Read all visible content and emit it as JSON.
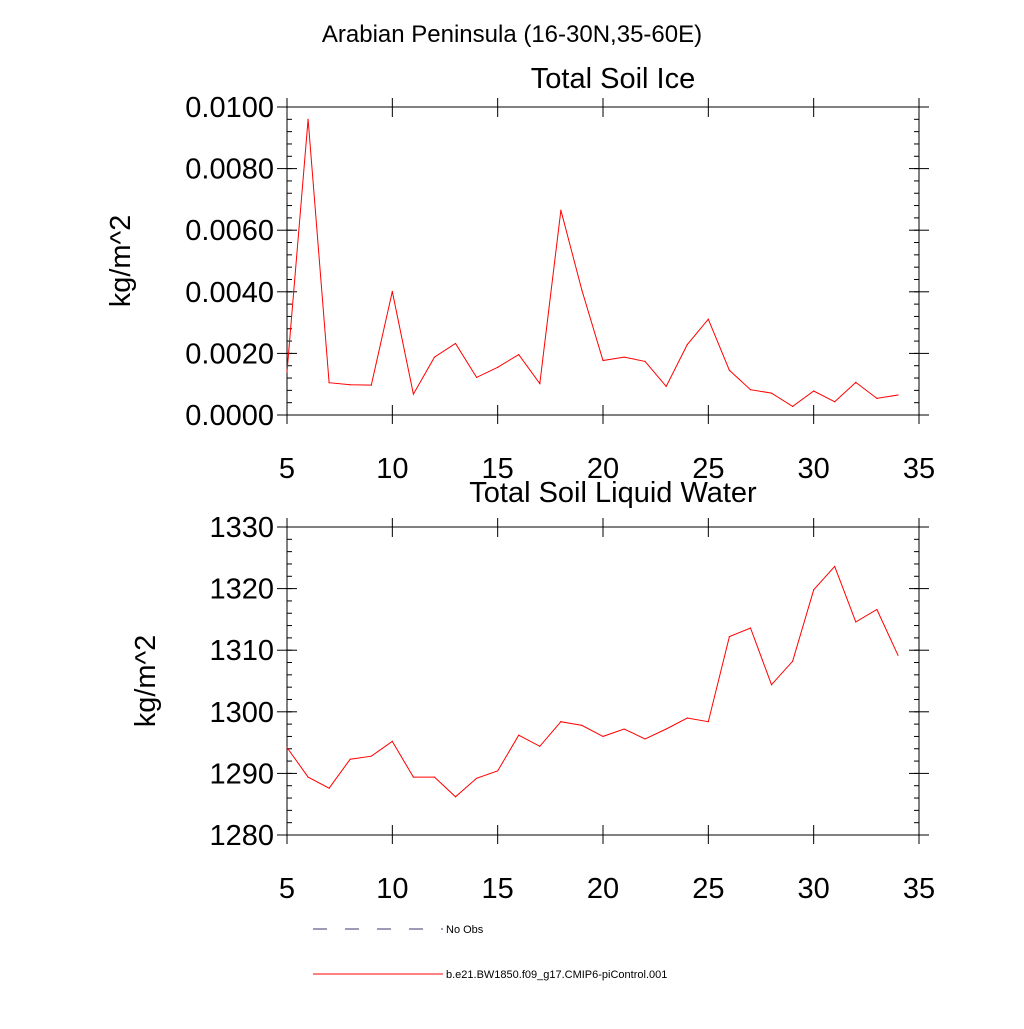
{
  "page_title": "Arabian Peninsula (16-30N,35-60E)",
  "colors": {
    "model_line": "#ff0000",
    "obs_line": "#3a3a6e",
    "axis": "#000000"
  },
  "chart_data": [
    {
      "type": "line",
      "title": "Total Soil Ice",
      "xlabel": "",
      "ylabel": "kg/m^2",
      "xlim": [
        5,
        35
      ],
      "ylim": [
        0,
        0.01
      ],
      "x_ticks": [
        5,
        10,
        15,
        20,
        25,
        30,
        35
      ],
      "x_tick_labels": [
        "5",
        "10",
        "15",
        "20",
        "25",
        "30",
        "35"
      ],
      "y_ticks": [
        0,
        0.002,
        0.004,
        0.006,
        0.008,
        0.01
      ],
      "y_tick_labels": [
        "0.0000",
        "0.0020",
        "0.0040",
        "0.0060",
        "0.0080",
        "0.0100"
      ],
      "series": [
        {
          "name": "b.e21.BW1850.f09_g17.CMIP6-piControl.001",
          "x": [
            5,
            6,
            7,
            8,
            9,
            10,
            11,
            12,
            13,
            14,
            15,
            16,
            17,
            18,
            19,
            20,
            21,
            22,
            23,
            24,
            25,
            26,
            27,
            28,
            29,
            30,
            31,
            32,
            33,
            34
          ],
          "values": [
            0.0014,
            0.0096,
            0.00105,
            0.00098,
            0.00097,
            0.00401,
            0.00068,
            0.00188,
            0.00232,
            0.00122,
            0.00155,
            0.00196,
            0.00102,
            0.00665,
            0.00405,
            0.00177,
            0.00188,
            0.00174,
            0.00093,
            0.00229,
            0.00311,
            0.00145,
            0.00082,
            0.00071,
            0.00028,
            0.00078,
            0.00043,
            0.00106,
            0.00054,
            0.00065
          ]
        }
      ]
    },
    {
      "type": "line",
      "title": "Total Soil Liquid Water",
      "xlabel": "",
      "ylabel": "kg/m^2",
      "xlim": [
        5,
        35
      ],
      "ylim": [
        1280,
        1330
      ],
      "x_ticks": [
        5,
        10,
        15,
        20,
        25,
        30,
        35
      ],
      "x_tick_labels": [
        "5",
        "10",
        "15",
        "20",
        "25",
        "30",
        "35"
      ],
      "y_ticks": [
        1280,
        1290,
        1300,
        1310,
        1320,
        1330
      ],
      "y_tick_labels": [
        "1280",
        "1290",
        "1300",
        "1310",
        "1320",
        "1330"
      ],
      "series": [
        {
          "name": "b.e21.BW1850.f09_g17.CMIP6-piControl.001",
          "x": [
            5,
            6,
            7,
            8,
            9,
            10,
            11,
            12,
            13,
            14,
            15,
            16,
            17,
            18,
            19,
            20,
            21,
            22,
            23,
            24,
            25,
            26,
            27,
            28,
            29,
            30,
            31,
            32,
            33,
            34
          ],
          "values": [
            1294.2,
            1289.4,
            1287.6,
            1292.3,
            1292.8,
            1295.2,
            1289.4,
            1289.4,
            1286.2,
            1289.2,
            1290.4,
            1296.2,
            1294.4,
            1298.4,
            1297.8,
            1296.0,
            1297.2,
            1295.6,
            1297.2,
            1299.0,
            1298.4,
            1312.2,
            1313.6,
            1304.4,
            1308.2,
            1319.8,
            1323.6,
            1314.6,
            1316.6,
            1309.2
          ]
        }
      ]
    }
  ],
  "legend": [
    {
      "label": "No Obs",
      "style": "dashed"
    },
    {
      "label": "b.e21.BW1850.f09_g17.CMIP6-piControl.001",
      "style": "solid"
    }
  ]
}
